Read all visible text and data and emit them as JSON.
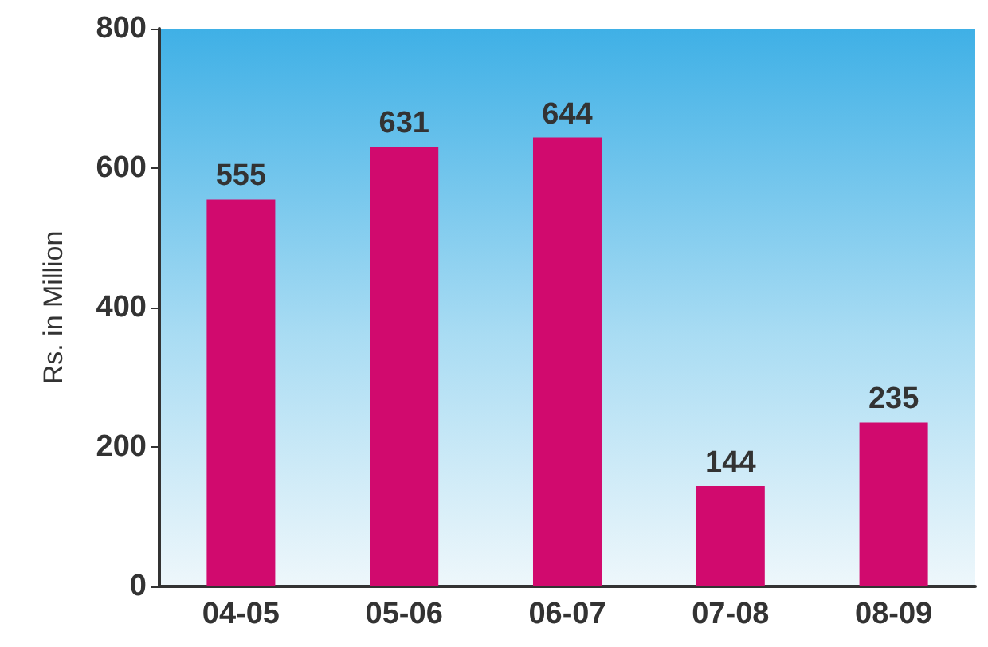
{
  "chart_data": {
    "type": "bar",
    "ylabel": "Rs. in Million",
    "categories": [
      "04-05",
      "05-06",
      "06-07",
      "07-08",
      "08-09"
    ],
    "values": [
      555,
      631,
      644,
      144,
      235
    ],
    "color": "#d10a6e",
    "ylim": [
      0,
      800
    ],
    "yticks": [
      0,
      200,
      400,
      600,
      800
    ],
    "grid": false,
    "data_labels": true
  }
}
